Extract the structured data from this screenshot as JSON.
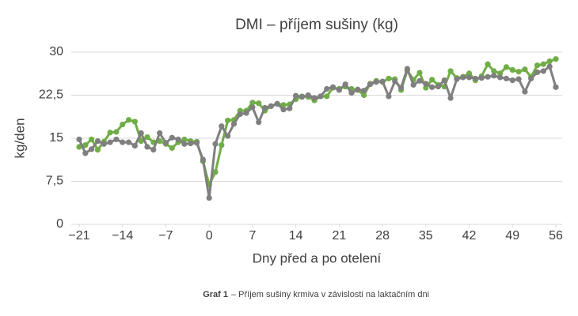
{
  "chart_data": {
    "type": "line",
    "title": "DMI – příjem sušiny (kg)",
    "ylabel": "kg/den",
    "xlabel": "Dny před a po otelení",
    "caption_label": "Graf 1",
    "caption": "– Příjem sušiny krmiva v závislosti na laktačním dni",
    "x": [
      -21,
      -20,
      -19,
      -18,
      -17,
      -16,
      -15,
      -14,
      -13,
      -12,
      -11,
      -10,
      -9,
      -8,
      -7,
      -6,
      -5,
      -4,
      -3,
      -2,
      -1,
      0,
      1,
      2,
      3,
      4,
      5,
      6,
      7,
      8,
      9,
      10,
      11,
      12,
      13,
      14,
      15,
      16,
      17,
      18,
      19,
      20,
      21,
      22,
      23,
      24,
      25,
      26,
      27,
      28,
      29,
      30,
      31,
      32,
      33,
      34,
      35,
      36,
      37,
      38,
      39,
      40,
      41,
      42,
      43,
      44,
      45,
      46,
      47,
      48,
      49,
      50,
      51,
      52,
      53,
      54,
      55,
      56
    ],
    "series": [
      {
        "color": "#70ad47",
        "values": [
          13.5,
          13.8,
          14.8,
          13.0,
          14.4,
          16.0,
          16.1,
          17.4,
          18.2,
          17.9,
          14.5,
          15.2,
          14.3,
          14.5,
          14.0,
          13.3,
          14.3,
          14.8,
          14.5,
          14.4,
          11.0,
          6.9,
          9.1,
          13.8,
          18.1,
          18.2,
          19.8,
          19.8,
          21.2,
          21.1,
          19.8,
          20.6,
          21.0,
          20.8,
          20.9,
          21.8,
          22.3,
          22.2,
          21.6,
          22.3,
          22.3,
          23.8,
          23.6,
          24.0,
          23.6,
          23.4,
          22.5,
          24.5,
          25.0,
          24.8,
          25.4,
          25.3,
          23.4,
          26.8,
          25.2,
          26.4,
          23.8,
          25.2,
          24.3,
          24.0,
          26.7,
          25.5,
          25.7,
          26.3,
          25.1,
          25.8,
          27.9,
          26.7,
          26.3,
          27.4,
          26.9,
          26.6,
          27.0,
          25.7,
          27.7,
          27.9,
          28.4,
          28.8
        ]
      },
      {
        "color": "#7f7f7f",
        "values": [
          14.8,
          12.4,
          13.1,
          14.5,
          14.0,
          14.3,
          14.8,
          14.3,
          14.3,
          13.7,
          15.9,
          13.5,
          13.0,
          15.9,
          14.2,
          15.1,
          14.8,
          14.0,
          14.1,
          14.2,
          11.3,
          4.6,
          14.0,
          17.1,
          15.4,
          17.5,
          19.2,
          19.4,
          20.4,
          17.8,
          20.3,
          20.6,
          21.0,
          20.0,
          20.2,
          22.4,
          22.2,
          22.5,
          22.0,
          22.3,
          23.6,
          23.9,
          23.4,
          24.4,
          22.9,
          23.5,
          23.3,
          24.4,
          24.8,
          24.9,
          22.3,
          24.9,
          23.8,
          27.1,
          24.3,
          25.0,
          24.5,
          23.9,
          24.0,
          25.1,
          22.0,
          25.3,
          25.6,
          25.6,
          25.4,
          25.5,
          25.7,
          25.9,
          25.6,
          25.4,
          25.1,
          25.3,
          23.1,
          25.4,
          26.5,
          26.7,
          27.5,
          23.9
        ]
      }
    ],
    "ylim": [
      0,
      30
    ],
    "yticks": [
      0,
      {
        "value": 7.5,
        "label": "7,5"
      },
      15,
      {
        "value": 22.5,
        "label": "22,5"
      },
      30
    ],
    "xlim": [
      -21,
      56
    ],
    "xticks": [
      {
        "value": -21,
        "label": "−21"
      },
      {
        "value": -14,
        "label": "−14"
      },
      {
        "value": -7,
        "label": "−7"
      },
      0,
      7,
      14,
      21,
      28,
      35,
      42,
      49,
      56
    ],
    "grid": true
  }
}
